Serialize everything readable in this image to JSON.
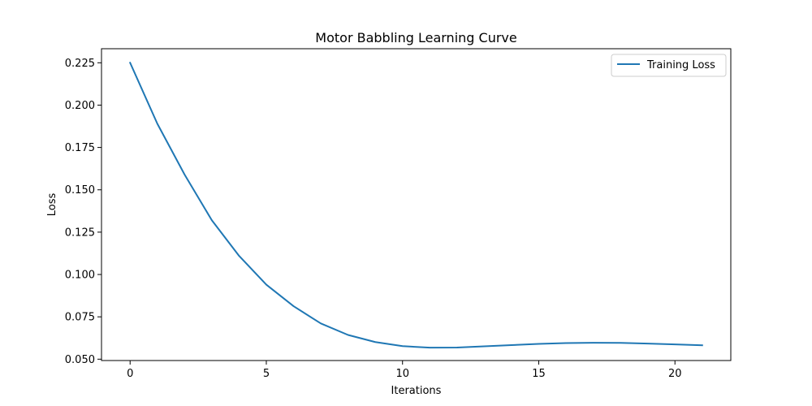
{
  "chart_data": {
    "type": "line",
    "title": "Motor Babbling Learning Curve",
    "xlabel": "Iterations",
    "ylabel": "Loss",
    "xlim": [
      -1.05,
      22.05
    ],
    "ylim": [
      0.0492,
      0.2333
    ],
    "xticks": [
      0,
      5,
      10,
      15,
      20
    ],
    "yticks": [
      0.05,
      0.075,
      0.1,
      0.125,
      0.15,
      0.175,
      0.2,
      0.225
    ],
    "ytick_labels": [
      "0.050",
      "0.075",
      "0.100",
      "0.125",
      "0.150",
      "0.175",
      "0.200",
      "0.225"
    ],
    "grid": false,
    "legend_position": "top-right",
    "series": [
      {
        "name": "Training Loss",
        "color": "#1f77b4",
        "x": [
          0,
          1,
          2,
          3,
          4,
          5,
          6,
          7,
          8,
          9,
          10,
          11,
          12,
          13,
          14,
          15,
          16,
          17,
          18,
          19,
          20,
          21
        ],
        "y": [
          0.225,
          0.189,
          0.159,
          0.132,
          0.111,
          0.094,
          0.0813,
          0.0711,
          0.0643,
          0.0601,
          0.0577,
          0.0568,
          0.0569,
          0.0576,
          0.0583,
          0.059,
          0.0595,
          0.0597,
          0.0596,
          0.0592,
          0.0587,
          0.0582
        ]
      }
    ]
  }
}
